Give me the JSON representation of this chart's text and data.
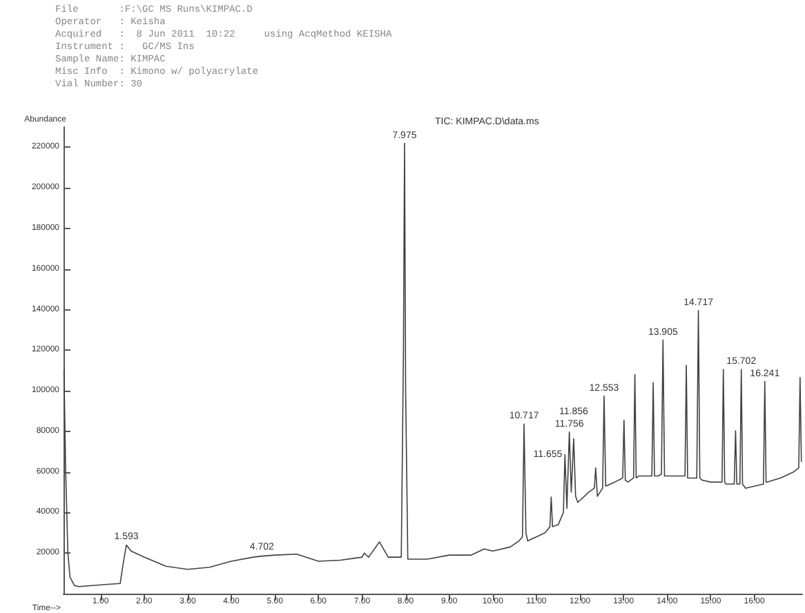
{
  "chart_data": {
    "type": "line",
    "title": "TIC: KIMPAC.D\\data.ms",
    "xlabel": "Time-->",
    "ylabel": "Abundance",
    "annotations": [
      "File       :F:\\GC MS Runs\\KIMPAC.D",
      "Operator   : Keisha",
      "Acquired   :  8 Jun 2011  10:22     using AcqMethod KEISHA",
      "Instrument :   GC/MS Ins",
      "Sample Name: KIMPAC",
      "Misc Info  : Kimono w/ polyacrylate",
      "Vial Number: 30",
      {
        "text": "1.593",
        "x": 1.593,
        "y": 24000
      },
      {
        "text": "4.702",
        "x": 4.702,
        "y": 19000
      },
      {
        "text": "7.975",
        "x": 7.975,
        "y": 222000
      },
      {
        "text": "10.717",
        "x": 10.717,
        "y": 83600
      },
      {
        "text": "11.655",
        "x": 11.655,
        "y": 68500
      },
      {
        "text": "11.756",
        "x": 11.756,
        "y": 79700
      },
      {
        "text": "11.856",
        "x": 11.856,
        "y": 76400
      },
      {
        "text": "12.553",
        "x": 12.553,
        "y": 97400
      },
      {
        "text": "13.905",
        "x": 13.905,
        "y": 125000
      },
      {
        "text": "14.717",
        "x": 14.717,
        "y": 139600
      },
      {
        "text": "15.702",
        "x": 15.702,
        "y": 110500
      },
      {
        "text": "16.241",
        "x": 16.241,
        "y": 104600
      }
    ],
    "series": [
      {
        "color": "#404040",
        "x": [
          0.16,
          0.2,
          0.25,
          0.3,
          0.4,
          0.5,
          0.8,
          1.1,
          1.45,
          1.52,
          1.593,
          1.7,
          2.0,
          2.5,
          3.0,
          3.5,
          4.0,
          4.5,
          4.702,
          5.0,
          5.5,
          6.0,
          6.5,
          7.0,
          7.05,
          7.15,
          7.4,
          7.6,
          7.9,
          7.95,
          7.975,
          8.0,
          8.05,
          8.5,
          9.0,
          9.5,
          9.8,
          10.0,
          10.4,
          10.6,
          10.68,
          10.717,
          10.76,
          10.8,
          11.0,
          11.2,
          11.31,
          11.34,
          11.37,
          11.5,
          11.62,
          11.655,
          11.7,
          11.756,
          11.8,
          11.856,
          11.9,
          11.95,
          12.2,
          12.33,
          12.36,
          12.4,
          12.52,
          12.553,
          12.59,
          12.8,
          12.98,
          13.01,
          13.04,
          13.1,
          13.23,
          13.26,
          13.29,
          13.35,
          13.65,
          13.68,
          13.71,
          13.8,
          13.87,
          13.905,
          13.94,
          14.0,
          14.2,
          14.41,
          14.44,
          14.47,
          14.5,
          14.68,
          14.717,
          14.75,
          14.8,
          15.0,
          15.26,
          15.29,
          15.32,
          15.35,
          15.54,
          15.57,
          15.6,
          15.62,
          15.67,
          15.702,
          15.73,
          15.8,
          16.0,
          16.21,
          16.241,
          16.27,
          16.3,
          16.6,
          16.9,
          17.02,
          17.05,
          17.08
        ],
        "values": [
          110000,
          60000,
          20000,
          8000,
          4000,
          3500,
          4000,
          4500,
          5000,
          15000,
          24000,
          21000,
          18000,
          13500,
          12000,
          13000,
          16000,
          18000,
          18500,
          19000,
          19500,
          16000,
          16500,
          18000,
          20000,
          18000,
          25500,
          18000,
          18000,
          120000,
          222000,
          100000,
          17000,
          17000,
          19000,
          19000,
          22000,
          21000,
          23000,
          26000,
          28000,
          83600,
          30000,
          26000,
          28000,
          30000,
          33000,
          47600,
          33000,
          34000,
          40000,
          68500,
          42000,
          79700,
          50000,
          76400,
          48000,
          45000,
          50000,
          52000,
          62000,
          48000,
          52000,
          97400,
          53000,
          55000,
          57000,
          85500,
          56000,
          55000,
          57000,
          108000,
          57000,
          58000,
          58000,
          104000,
          58000,
          58000,
          59000,
          125000,
          58000,
          58000,
          58000,
          58000,
          112500,
          57000,
          57000,
          57000,
          139600,
          57000,
          56000,
          55000,
          55000,
          110500,
          55000,
          54000,
          54000,
          80300,
          54000,
          54000,
          54000,
          110500,
          54000,
          52000,
          53000,
          54000,
          104600,
          55000,
          55000,
          57000,
          60000,
          62000,
          106600,
          65000
        ]
      }
    ],
    "xlim": [
      0.15,
      17.1
    ],
    "ylim": [
      0,
      230000
    ],
    "xticks": [
      {
        "value": 1,
        "label": "1.00"
      },
      {
        "value": 2,
        "label": "2.00"
      },
      {
        "value": 3,
        "label": "3.00"
      },
      {
        "value": 4,
        "label": "4.00"
      },
      {
        "value": 5,
        "label": "5.00"
      },
      {
        "value": 6,
        "label": "6.00"
      },
      {
        "value": 7,
        "label": "7.00"
      },
      {
        "value": 8,
        "label": "8.00"
      },
      {
        "value": 9,
        "label": "9.00"
      },
      {
        "value": 10,
        "label": "10.00"
      },
      {
        "value": 11,
        "label": "11.00"
      },
      {
        "value": 12,
        "label": "12.00"
      },
      {
        "value": 13,
        "label": "13.00"
      },
      {
        "value": 14,
        "label": "14.00"
      },
      {
        "value": 15,
        "label": "15.00"
      },
      {
        "value": 16,
        "label": "16.00"
      }
    ],
    "yticks": [
      20000,
      40000,
      60000,
      80000,
      100000,
      120000,
      140000,
      160000,
      180000,
      200000,
      220000
    ],
    "grid": false,
    "marker": "none",
    "line_style": "solid"
  }
}
